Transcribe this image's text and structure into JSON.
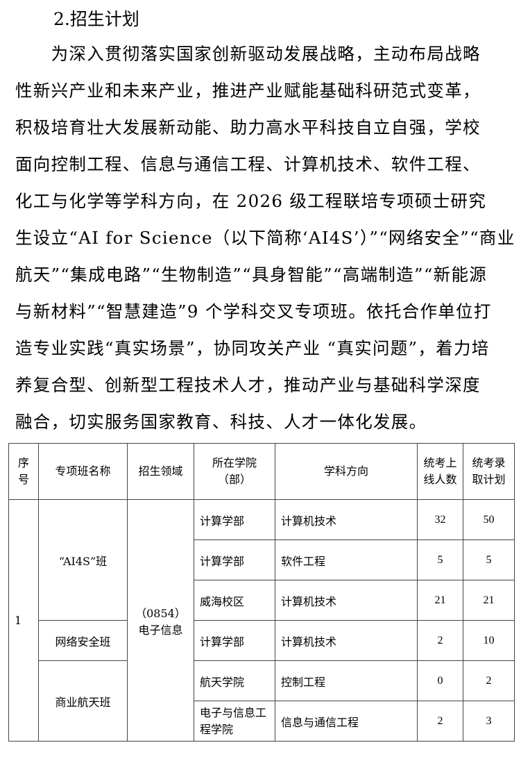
{
  "heading": "2.招生计划",
  "paragraph_lines": [
    "　　为深入贯彻落实国家创新驱动发展战略，主动布局战略",
    "性新兴产业和未来产业，推进产业赋能基础科研范式变革，",
    "积极培育壮大发展新动能、助力高水平科技自立自强，学校",
    "面向控制工程、信息与通信工程、计算机技术、软件工程、",
    "化工与化学等学科方向，在 2026 级工程联培专项硕士研究",
    "生设立“AI for Science（以下简称‘AI4S’）”“网络安全”“商业",
    "航天”“集成电路”“生物制造”“具身智能”“高端制造”“新能源",
    "与新材料”“智慧建造”9 个学科交叉专项班。依托合作单位打",
    "造专业实践“真实场景”，协同攻关产业 “真实问题”，着力培",
    "养复合型、创新型工程技术人才，推动产业与基础科学深度",
    "融合，切实服务国家教育、科技、人才一体化发展。"
  ],
  "table": {
    "headers": [
      "序号",
      "专项班名称",
      "招生领域",
      "所在学院（部）",
      "学科方向",
      "统考上线人数",
      "统考录取计划"
    ],
    "index": "1",
    "field": "（0854）电子信息",
    "classes": [
      "“AI4S”班",
      "网络安全班",
      "商业航天班"
    ],
    "rows": [
      {
        "college": "计算学部",
        "direction": "计算机技术",
        "online": "32",
        "plan": "50"
      },
      {
        "college": "计算学部",
        "direction": "软件工程",
        "online": "5",
        "plan": "5"
      },
      {
        "college": "威海校区",
        "direction": "计算机技术",
        "online": "21",
        "plan": "21"
      },
      {
        "college": "计算学部",
        "direction": "计算机技术",
        "online": "2",
        "plan": "10"
      },
      {
        "college": "航天学院",
        "direction": "控制工程",
        "online": "0",
        "plan": "2"
      },
      {
        "college": "电子与信息工程学院",
        "direction": "信息与通信工程",
        "online": "2",
        "plan": "3"
      }
    ]
  }
}
